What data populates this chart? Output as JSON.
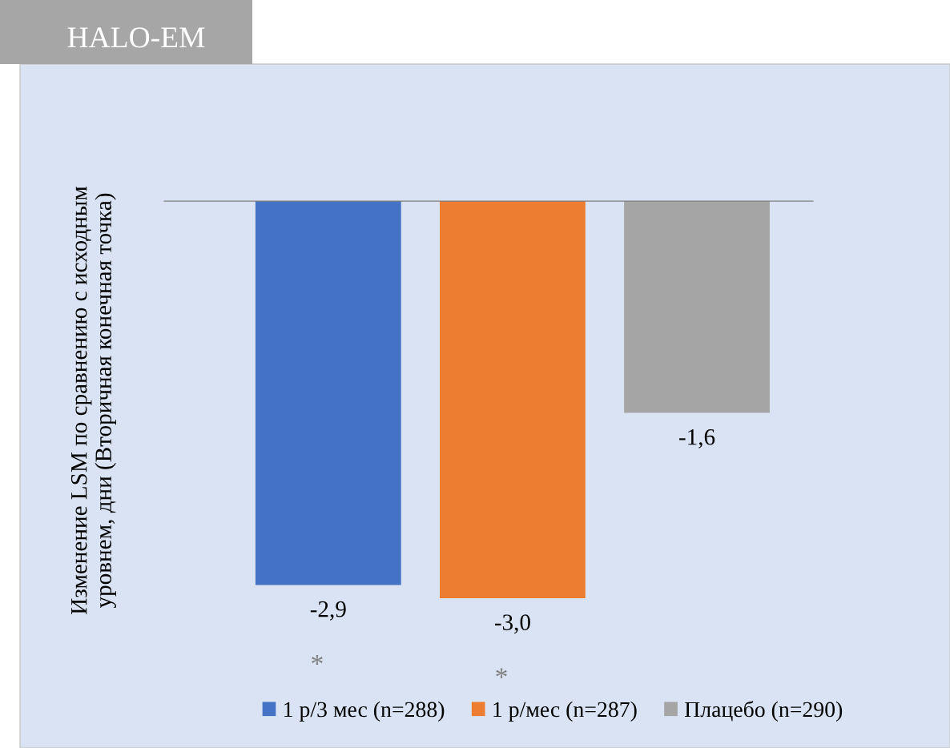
{
  "chart_data": {
    "type": "bar",
    "title": "HALO-EM",
    "ylabel": "Изменение LSM по сравнению с исходным\nуровнем, дни (Вторичная конечная точка)",
    "categories": [
      null
    ],
    "series": [
      {
        "name": "1 р/3 мес (n=288)",
        "color": "#4472c4",
        "values": [
          -2.9
        ],
        "value_labels": [
          "-2,9"
        ]
      },
      {
        "name": "1 р/мес (n=287)",
        "color": "#ed7d31",
        "values": [
          -3.0
        ],
        "value_labels": [
          "-3,0"
        ]
      },
      {
        "name": "Плацебо (n=290)",
        "color": "#a5a5a5",
        "values": [
          -1.6
        ],
        "value_labels": [
          "-1,6"
        ]
      }
    ],
    "legend": "bottom",
    "annotations": [
      "*",
      "*"
    ]
  }
}
